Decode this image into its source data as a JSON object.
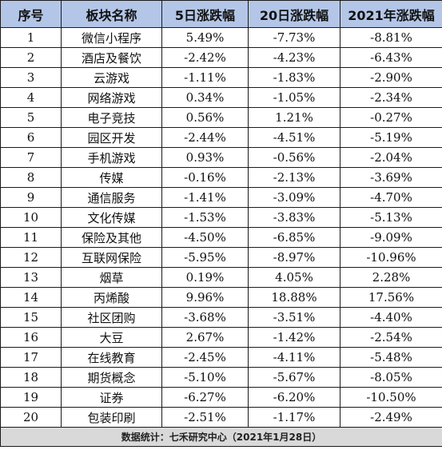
{
  "table": {
    "headers": [
      "序号",
      "板块名称",
      "5日涨跌幅",
      "20日涨跌幅",
      "2021年涨跌幅"
    ],
    "rows": [
      [
        "1",
        "微信小程序",
        "5.49%",
        "-7.73%",
        "-8.81%"
      ],
      [
        "2",
        "酒店及餐饮",
        "-2.42%",
        "-4.23%",
        "-6.43%"
      ],
      [
        "3",
        "云游戏",
        "-1.11%",
        "-1.83%",
        "-2.90%"
      ],
      [
        "4",
        "网络游戏",
        "0.34%",
        "-1.05%",
        "-2.34%"
      ],
      [
        "5",
        "电子竞技",
        "0.56%",
        "1.21%",
        "-0.27%"
      ],
      [
        "6",
        "园区开发",
        "-2.44%",
        "-4.51%",
        "-5.19%"
      ],
      [
        "7",
        "手机游戏",
        "0.93%",
        "-0.56%",
        "-2.04%"
      ],
      [
        "8",
        "传媒",
        "-0.16%",
        "-2.13%",
        "-3.69%"
      ],
      [
        "9",
        "通信服务",
        "-1.41%",
        "-3.09%",
        "-4.70%"
      ],
      [
        "10",
        "文化传媒",
        "-1.53%",
        "-3.83%",
        "-5.13%"
      ],
      [
        "11",
        "保险及其他",
        "-4.50%",
        "-6.85%",
        "-9.09%"
      ],
      [
        "12",
        "互联网保险",
        "-5.95%",
        "-8.97%",
        "-10.96%"
      ],
      [
        "13",
        "烟草",
        "0.19%",
        "4.05%",
        "2.28%"
      ],
      [
        "14",
        "丙烯酸",
        "9.96%",
        "18.88%",
        "17.56%"
      ],
      [
        "15",
        "社区团购",
        "-3.68%",
        "-3.51%",
        "-4.40%"
      ],
      [
        "16",
        "大豆",
        "2.67%",
        "-1.42%",
        "-2.54%"
      ],
      [
        "17",
        "在线教育",
        "-2.45%",
        "-4.11%",
        "-5.48%"
      ],
      [
        "18",
        "期货概念",
        "-5.10%",
        "-5.67%",
        "-8.05%"
      ],
      [
        "19",
        "证券",
        "-6.27%",
        "-6.20%",
        "-10.50%"
      ],
      [
        "20",
        "包装印刷",
        "-2.51%",
        "-1.17%",
        "-2.49%"
      ]
    ],
    "footer": "数据统计：七禾研究中心（2021年1月28日）"
  },
  "colors": {
    "header_bg": "#b4c6e7",
    "footer_bg": "#d9d9d9",
    "border": "#1a1a1a"
  }
}
